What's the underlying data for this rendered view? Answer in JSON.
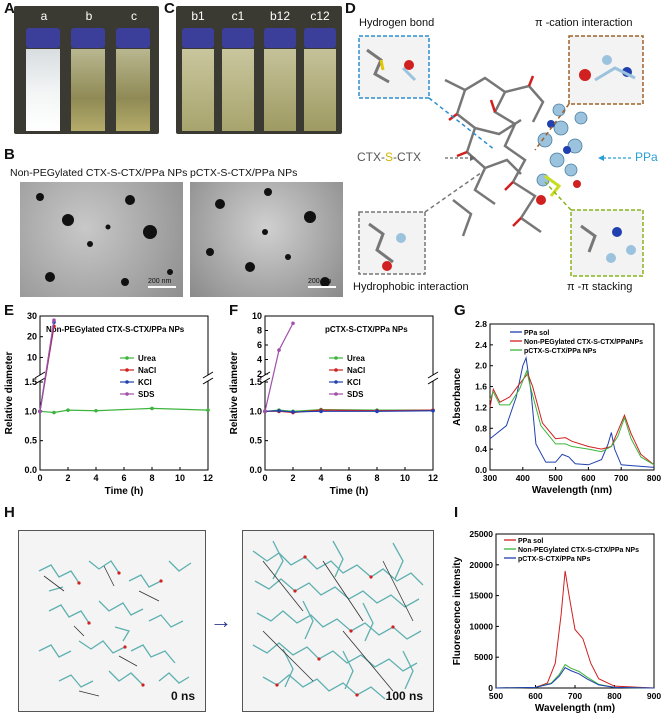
{
  "panels": {
    "A": {
      "label": "A",
      "vials": [
        "a",
        "b",
        "c"
      ]
    },
    "B": {
      "label": "B",
      "left_title": "Non-PEGylated CTX-S-CTX/PPa NPs",
      "right_title": "pCTX-S-CTX/PPa NPs",
      "scale": "200 nm"
    },
    "C": {
      "label": "C",
      "vials": [
        "b1",
        "c1",
        "b12",
        "c12"
      ]
    },
    "D": {
      "label": "D",
      "hbond": "Hydrogen bond",
      "pication": "π -cation interaction",
      "hydrophobic": "Hydrophobic interaction",
      "pipi": "π -π   stacking",
      "ctx_a": "CTX-",
      "ctx_s": "S",
      "ctx_b": "-CTX",
      "ppa": "PPa"
    },
    "E": {
      "label": "E"
    },
    "F": {
      "label": "F"
    },
    "G": {
      "label": "G"
    },
    "H": {
      "label": "H",
      "t0": "0 ns",
      "t1": "100 ns"
    },
    "I": {
      "label": "I"
    }
  },
  "colors": {
    "urea": "#3cb43c",
    "nacl": "#d02020",
    "kcl": "#2040b0",
    "sds": "#a050a8",
    "ppa": "#2040b0",
    "nonpeg": "#d02020",
    "pctx": "#3cb43c"
  },
  "chart_data": [
    {
      "id": "E",
      "type": "line",
      "title": "Non-PEGylated CTX-S-CTX/PPa NPs",
      "xlabel": "Time (h)",
      "ylabel": "Relative diameter",
      "xlim": [
        0,
        12
      ],
      "xticks": [
        0,
        2,
        4,
        6,
        8,
        10,
        12
      ],
      "yticks_lower": [
        0.0,
        0.5,
        1.0,
        1.5
      ],
      "yticks_upper": [
        10,
        20,
        30
      ],
      "axis_break": true,
      "series": [
        {
          "name": "Urea",
          "x": [
            0,
            1,
            2,
            4,
            8,
            12
          ],
          "y": [
            1.0,
            0.98,
            1.02,
            1.01,
            1.05,
            1.02
          ]
        },
        {
          "name": "NaCl",
          "x": [
            0,
            1
          ],
          "y": [
            1.0,
            25
          ]
        },
        {
          "name": "KCl",
          "x": [
            0,
            1
          ],
          "y": [
            1.0,
            27
          ]
        },
        {
          "name": "SDS",
          "x": [
            0,
            1
          ],
          "y": [
            1.0,
            28
          ]
        }
      ]
    },
    {
      "id": "F",
      "type": "line",
      "title": "pCTX-S-CTX/PPa NPs",
      "xlabel": "Time (h)",
      "ylabel": "Relative diameter",
      "xlim": [
        0,
        12
      ],
      "xticks": [
        0,
        2,
        4,
        6,
        8,
        10,
        12
      ],
      "yticks_lower": [
        0.0,
        0.5,
        1.0,
        1.5
      ],
      "yticks_upper": [
        2,
        4,
        6,
        8,
        10
      ],
      "axis_break": true,
      "series": [
        {
          "name": "Urea",
          "x": [
            0,
            1,
            2,
            4,
            8,
            12
          ],
          "y": [
            1.0,
            1.02,
            1.0,
            1.03,
            1.02,
            1.02
          ]
        },
        {
          "name": "NaCl",
          "x": [
            0,
            1,
            2,
            4,
            8,
            12
          ],
          "y": [
            1.0,
            1.0,
            0.98,
            1.02,
            1.01,
            1.02
          ]
        },
        {
          "name": "KCl",
          "x": [
            0,
            1,
            2,
            4,
            8,
            12
          ],
          "y": [
            1.0,
            1.01,
            0.99,
            1.0,
            1.0,
            1.01
          ]
        },
        {
          "name": "SDS",
          "x": [
            0,
            1,
            2
          ],
          "y": [
            1.0,
            5.3,
            9.0
          ]
        }
      ]
    },
    {
      "id": "G",
      "type": "line",
      "xlabel": "Wavelength (nm)",
      "ylabel": "Absorbance",
      "xlim": [
        300,
        800
      ],
      "ylim": [
        0.0,
        2.8
      ],
      "xticks": [
        300,
        400,
        500,
        600,
        700,
        800
      ],
      "yticks": [
        0.0,
        0.4,
        0.8,
        1.2,
        1.6,
        2.0,
        2.4,
        2.8
      ],
      "series": [
        {
          "name": "PPa sol",
          "x": [
            300,
            320,
            350,
            380,
            400,
            410,
            425,
            440,
            470,
            500,
            520,
            540,
            560,
            600,
            640,
            660,
            670,
            680,
            700,
            800
          ],
          "y": [
            0.6,
            0.7,
            0.85,
            1.4,
            2.0,
            2.15,
            1.5,
            0.5,
            0.15,
            0.15,
            0.3,
            0.25,
            0.12,
            0.1,
            0.2,
            0.5,
            0.72,
            0.4,
            0.1,
            0.05
          ]
        },
        {
          "name": "Non-PEGylated CTX-S-CTX/PPaNPs",
          "x": [
            300,
            310,
            330,
            360,
            390,
            415,
            430,
            460,
            500,
            530,
            550,
            600,
            640,
            670,
            690,
            710,
            730,
            760,
            800
          ],
          "y": [
            1.2,
            1.55,
            1.3,
            1.4,
            1.65,
            1.85,
            1.6,
            0.9,
            0.6,
            0.62,
            0.55,
            0.45,
            0.4,
            0.45,
            0.75,
            1.05,
            0.7,
            0.3,
            0.1
          ]
        },
        {
          "name": "pCTX-S-CTX/PPa NPs",
          "x": [
            300,
            310,
            330,
            360,
            390,
            412,
            425,
            455,
            500,
            530,
            550,
            600,
            640,
            670,
            690,
            710,
            730,
            760,
            800
          ],
          "y": [
            1.35,
            1.5,
            1.25,
            1.25,
            1.55,
            1.9,
            1.55,
            0.85,
            0.5,
            0.5,
            0.45,
            0.4,
            0.35,
            0.45,
            0.65,
            1.0,
            0.6,
            0.25,
            0.1
          ]
        }
      ]
    },
    {
      "id": "I",
      "type": "line",
      "xlabel": "Wavelength (nm)",
      "ylabel": "Fluorescence intensity",
      "xlim": [
        500,
        900
      ],
      "ylim": [
        0,
        25000
      ],
      "xticks": [
        500,
        600,
        700,
        800,
        900
      ],
      "yticks": [
        0,
        5000,
        10000,
        15000,
        20000,
        25000
      ],
      "series": [
        {
          "name": "PPa sol",
          "x": [
            500,
            600,
            630,
            650,
            665,
            675,
            685,
            700,
            720,
            740,
            760,
            800,
            900
          ],
          "y": [
            0,
            100,
            800,
            4000,
            12000,
            19000,
            15000,
            9500,
            8000,
            4000,
            1500,
            300,
            0
          ]
        },
        {
          "name": "Non-PEGylated CTX-S-CTX/PPa NPs",
          "x": [
            500,
            600,
            640,
            660,
            675,
            690,
            710,
            730,
            760,
            800,
            900
          ],
          "y": [
            0,
            100,
            800,
            2200,
            3800,
            3200,
            2700,
            1800,
            600,
            100,
            0
          ]
        },
        {
          "name": "pCTX-S-CTX/PPa NPs",
          "x": [
            500,
            600,
            640,
            660,
            675,
            690,
            710,
            730,
            760,
            800,
            900
          ],
          "y": [
            0,
            100,
            700,
            1900,
            3300,
            2800,
            2300,
            1500,
            500,
            100,
            0
          ]
        }
      ]
    }
  ]
}
